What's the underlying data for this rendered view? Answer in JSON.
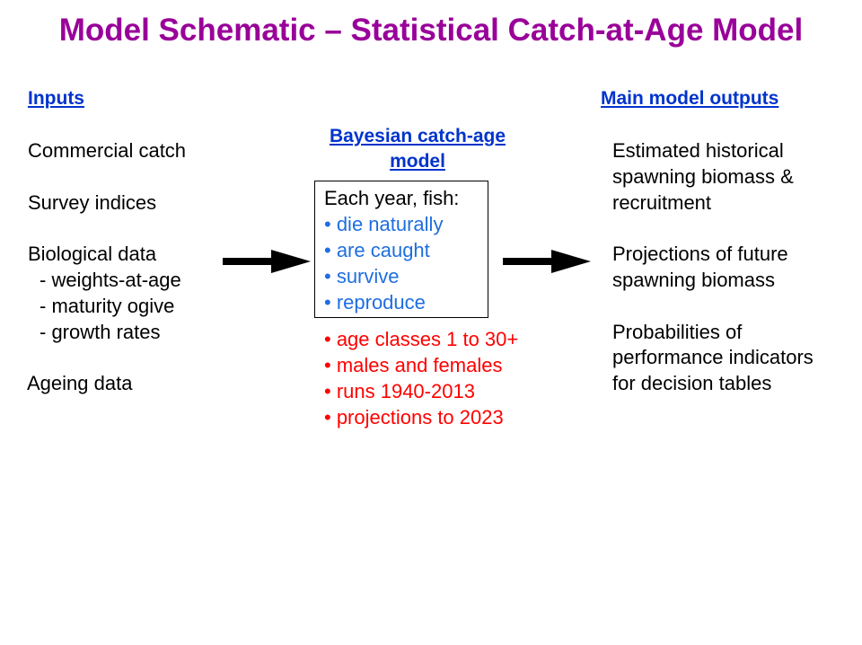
{
  "title": "Model Schematic – Statistical Catch-at-Age Model",
  "inputs": {
    "heading": "Inputs",
    "items": [
      "Commercial catch",
      "Survey indices",
      "Biological data",
      "- weights-at-age",
      "- maturity ogive",
      "- growth rates",
      "Ageing data"
    ]
  },
  "model": {
    "heading_line1": "Bayesian catch-age",
    "heading_line2": "model",
    "box_lead": "Each year, fish:",
    "box_items": [
      "• die naturally",
      "• are caught",
      "• survive",
      "• reproduce"
    ],
    "details": [
      "• age classes 1 to 30+",
      "• males and females",
      "• runs 1940-2013",
      "• projections to 2023"
    ]
  },
  "outputs": {
    "heading": "Main model outputs",
    "items": [
      "Estimated historical",
      "spawning biomass &",
      "recruitment",
      "Projections of future",
      "spawning biomass",
      "Probabilities of",
      "performance indicators",
      "for decision tables"
    ]
  },
  "colors": {
    "title": "#990099",
    "heading": "#0033cc",
    "box_items": "#1f6ee0",
    "details": "#ff0000",
    "text": "#000000"
  },
  "icons": [
    "right-arrow-icon"
  ]
}
